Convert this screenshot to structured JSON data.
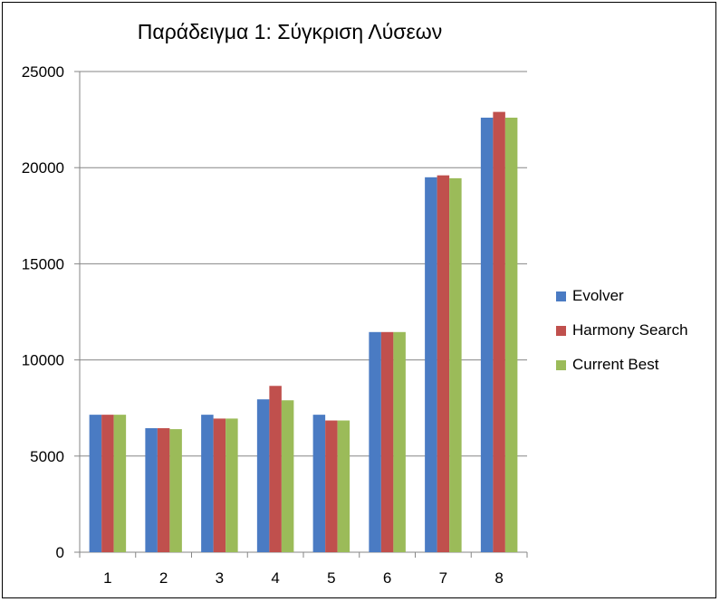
{
  "chart_data": {
    "type": "bar",
    "title": "Παράδειγμα 1: Σύγκριση Λύσεων",
    "xlabel": "",
    "ylabel": "",
    "categories": [
      "1",
      "2",
      "3",
      "4",
      "5",
      "6",
      "7",
      "8"
    ],
    "ylim": [
      0,
      25000
    ],
    "yticks": [
      "0",
      "5000",
      "10000",
      "15000",
      "20000",
      "25000"
    ],
    "grid": true,
    "legend_position": "right",
    "series": [
      {
        "name": "Evolver",
        "color": "#4a7bc3",
        "values": [
          7150,
          6450,
          7150,
          7950,
          7150,
          11450,
          19500,
          22600
        ]
      },
      {
        "name": "Harmony Search",
        "color": "#c0504d",
        "values": [
          7150,
          6450,
          6950,
          8650,
          6850,
          11450,
          19600,
          22900
        ]
      },
      {
        "name": "Current Best",
        "color": "#9bbb59",
        "values": [
          7150,
          6400,
          6950,
          7900,
          6850,
          11450,
          19450,
          22600
        ]
      }
    ]
  }
}
